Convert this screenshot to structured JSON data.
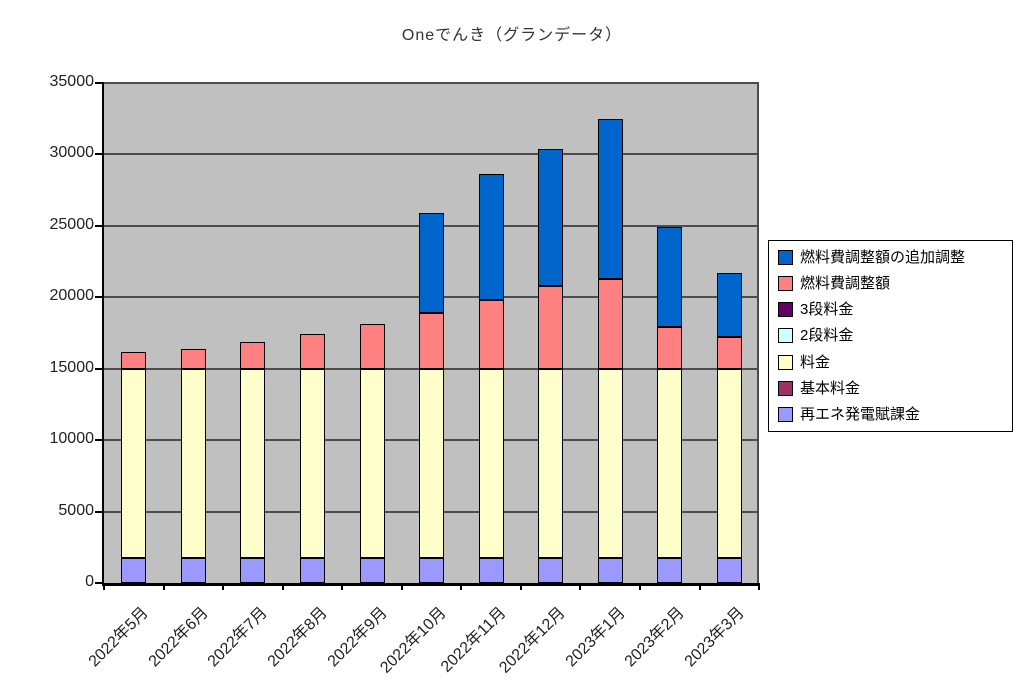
{
  "chart_data": {
    "type": "bar",
    "stacked": true,
    "title": "Oneでんき（グランデータ）",
    "categories": [
      "2022年5月",
      "2022年6月",
      "2022年7月",
      "2022年8月",
      "2022年9月",
      "2022年10月",
      "2022年11月",
      "2022年12月",
      "2023年1月",
      "2023年2月",
      "2023年3月"
    ],
    "series": [
      {
        "name": "再エネ発電賦課金",
        "color": "#9999FF",
        "values": [
          1725,
          1725,
          1725,
          1725,
          1725,
          1725,
          1725,
          1725,
          1725,
          1725,
          1725
        ]
      },
      {
        "name": "基本料金",
        "color": "#993366",
        "values": [
          0,
          0,
          0,
          0,
          0,
          0,
          0,
          0,
          0,
          0,
          0
        ]
      },
      {
        "name": "料金",
        "color": "#FFFFCC",
        "values": [
          13275,
          13275,
          13275,
          13275,
          13275,
          13275,
          13275,
          13275,
          13275,
          13275,
          13275
        ]
      },
      {
        "name": "2段料金",
        "color": "#CCFFFF",
        "values": [
          0,
          0,
          0,
          0,
          0,
          0,
          0,
          0,
          0,
          0,
          0
        ]
      },
      {
        "name": "3段料金",
        "color": "#660066",
        "values": [
          0,
          0,
          0,
          0,
          0,
          0,
          0,
          0,
          0,
          0,
          0
        ]
      },
      {
        "name": "燃料費調整額",
        "color": "#FF8080",
        "values": [
          1200,
          1400,
          1900,
          2400,
          3100,
          3900,
          4800,
          5800,
          6300,
          2900,
          2200
        ]
      },
      {
        "name": "燃料費調整額の追加調整",
        "color": "#0066CC",
        "values": [
          0,
          0,
          0,
          0,
          0,
          7000,
          8800,
          9600,
          11200,
          7000,
          4500
        ]
      }
    ],
    "ylim": [
      0,
      35000
    ],
    "ytick_step": 5000,
    "ytick_labels": [
      "0",
      "5000",
      "10000",
      "15000",
      "20000",
      "25000",
      "30000",
      "35000"
    ],
    "grid": true,
    "legend_position": "right",
    "plot_bg": "#C0C0C0",
    "gridline_color": "#4D4D4D",
    "axis_color": "#000000"
  }
}
